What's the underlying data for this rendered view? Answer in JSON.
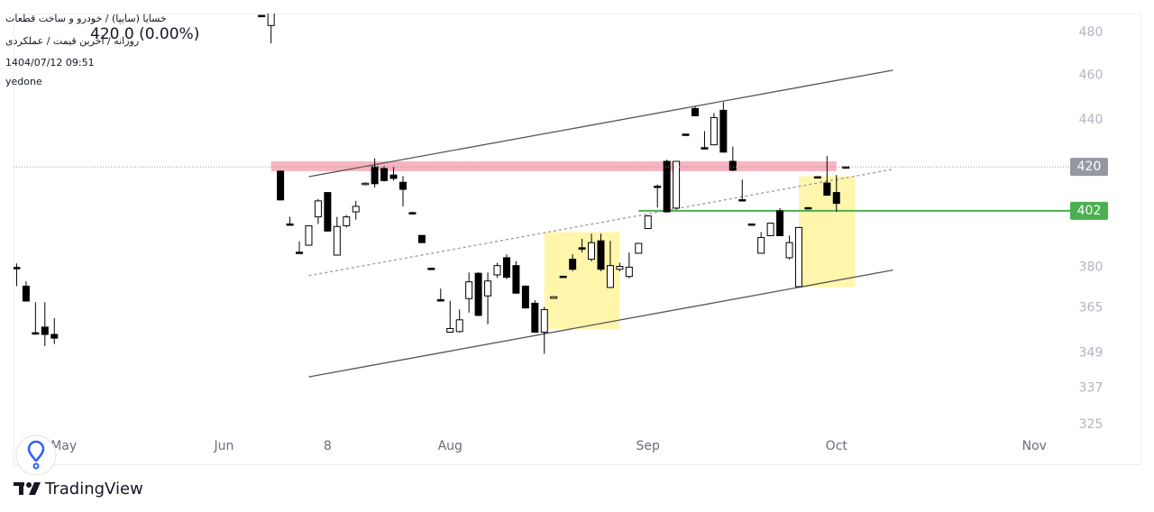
{
  "chart_data": {
    "type": "candlestick",
    "header": {
      "symbol": "خسایا (سایپا) / خودرو و ساخت قطعات",
      "quote": "420 0 (0.00%)",
      "interval": "روزانه / آخرین قیمت / عملکردی",
      "datetime": "1404/07/12 09:51",
      "author": "yedone"
    },
    "brand": "TradingView",
    "x": [
      0,
      1,
      2,
      3,
      4,
      26,
      27,
      28,
      29,
      30,
      31,
      32,
      33,
      34,
      35,
      36,
      37,
      38,
      39,
      40,
      41,
      42,
      43,
      44,
      45,
      46,
      47,
      48,
      49,
      50,
      51,
      52,
      53,
      54,
      55,
      56,
      57,
      58,
      59,
      60,
      61,
      62,
      63,
      64,
      65,
      66,
      67,
      68,
      69,
      70,
      71,
      72,
      73,
      74,
      75,
      76,
      77,
      78,
      79,
      80,
      81,
      82,
      83,
      84,
      85,
      86,
      87,
      88
    ],
    "open": [
      380,
      373.0,
      356.1,
      358.1,
      355.5,
      488.3,
      483.4,
      418.2,
      396.8,
      385.8,
      388.5,
      399.6,
      409.4,
      384.7,
      396.1,
      401.6,
      413.0,
      420.0,
      419.3,
      416.6,
      413.6,
      401.3,
      392.3,
      379.7,
      368.0,
      356.3,
      356.5,
      368.4,
      377.8,
      369.4,
      377.2,
      383.7,
      380.7,
      373.0,
      366.7,
      356.3,
      368.5,
      376.7,
      383.1,
      387.5,
      383.1,
      390.2,
      372.5,
      379.3,
      376.6,
      385.4,
      395.0,
      412.0,
      422.3,
      403.1,
      433.9,
      445.1,
      428.1,
      429.3,
      444.3,
      422.3,
      406.5,
      396.8,
      385.4,
      392.2,
      402.0,
      383.7,
      372.8,
      403.3,
      415.9,
      413.3,
      409.4,
      420.0
    ],
    "high": [
      381.5,
      374.8,
      367.1,
      367.1,
      361.3,
      488.5,
      490,
      418.4,
      399.6,
      390.0,
      396.2,
      406.8,
      409.5,
      399.6,
      400.3,
      406.0,
      413.6,
      423.6,
      420.4,
      419.9,
      416.2,
      401.6,
      392.3,
      379.8,
      372.1,
      367.6,
      364.4,
      378.1,
      378.2,
      378.1,
      381.8,
      385.0,
      382.4,
      373.3,
      367.8,
      365.4,
      369.2,
      376.8,
      385.0,
      391.0,
      393.0,
      393.0,
      390.2,
      381.8,
      385.7,
      389.4,
      400.3,
      412.7,
      423.0,
      422.5,
      434.0,
      445.9,
      435.2,
      443.1,
      447.9,
      428.5,
      414.7,
      397.0,
      393.6,
      397.3,
      403.1,
      392.2,
      395.6,
      403.5,
      416.1,
      424.5,
      416.6,
      420.1
    ],
    "low": [
      373,
      367.3,
      355.4,
      351.4,
      352.1,
      487.8,
      474.9,
      406.2,
      396.5,
      385.4,
      388.3,
      396.8,
      393.8,
      384.5,
      395.4,
      398.5,
      412.3,
      411.5,
      413.9,
      414.3,
      403.8,
      400.8,
      389.3,
      379.4,
      367.6,
      356.1,
      356.2,
      363.3,
      362.0,
      359.1,
      376.1,
      375.6,
      370.2,
      364.8,
      356.1,
      348.7,
      368.3,
      376.4,
      378.6,
      385.7,
      382.3,
      378.6,
      372.3,
      378.6,
      375.9,
      385.2,
      394.8,
      403.3,
      401.3,
      402.4,
      433.6,
      441.7,
      427.4,
      429.1,
      426.0,
      418.2,
      406.1,
      396.5,
      385.2,
      392.0,
      392.0,
      383.0,
      372.6,
      403.0,
      415.6,
      408.1,
      401.6,
      419.7
    ],
    "close": [
      379.8,
      367.5,
      355.8,
      355.5,
      354.2,
      488.0,
      490,
      406.4,
      396.6,
      385.6,
      396.1,
      406.0,
      394.0,
      395.8,
      399.6,
      403.8,
      413.2,
      413.0,
      414.3,
      415.2,
      410.7,
      401.1,
      389.5,
      379.5,
      367.8,
      357.6,
      360.7,
      374.6,
      362.3,
      374.9,
      380.7,
      376.3,
      370.4,
      365.0,
      356.3,
      364.4,
      369.1,
      376.5,
      379.3,
      387.3,
      389.5,
      379.3,
      380.7,
      380.4,
      380.1,
      389.2,
      400.0,
      411.8,
      401.6,
      422.3,
      433.7,
      441.9,
      427.9,
      441.1,
      426.2,
      418.6,
      406.3,
      396.6,
      391.5,
      397.1,
      392.2,
      389.5,
      395.4,
      403.1,
      415.7,
      408.3,
      405.0,
      419.8
    ],
    "up_color": "#ffffff",
    "down_color": "#000000",
    "wick_color": "#000000",
    "xlim": [
      -0.33,
      111.8
    ],
    "xticks": [
      {
        "value": 5,
        "label": "May"
      },
      {
        "value": 22,
        "label": "Jun"
      },
      {
        "value": 33,
        "label": "8"
      },
      {
        "value": 46,
        "label": "Aug"
      },
      {
        "value": 67,
        "label": "Sep"
      },
      {
        "value": 87,
        "label": "Oct"
      },
      {
        "value": 108,
        "label": "Nov"
      }
    ],
    "ylim": [
      322.4,
      489.2
    ],
    "yticks": [
      480,
      460,
      440,
      380,
      365,
      349,
      337,
      325
    ],
    "log_scale": true,
    "grid": false,
    "last_price": 420,
    "last_price_color": "#9598a1",
    "drawings": [
      {
        "kind": "rectangle",
        "x": [
          27,
          87
        ],
        "y": [
          422.3,
          418.2
        ],
        "color": "#f7a8b4"
      },
      {
        "kind": "rectangle",
        "x": [
          56,
          64
        ],
        "y": [
          393.6,
          357.4
        ],
        "color": "#fff59d"
      },
      {
        "kind": "rectangle",
        "x": [
          83,
          89
        ],
        "y": [
          416.1,
          372.6
        ],
        "color": "#fff59d"
      },
      {
        "kind": "trend_line",
        "x": [
          31,
          93
        ],
        "y": [
          415.9,
          462.4
        ],
        "color": "#555555"
      },
      {
        "kind": "trend_line",
        "x": [
          31,
          93
        ],
        "y": [
          340.8,
          379.0
        ],
        "color": "#555555"
      },
      {
        "kind": "dashed_line",
        "x": [
          31,
          93
        ],
        "y": [
          376.9,
          419.0
        ],
        "color": "#999999"
      },
      {
        "kind": "horizontal_ray",
        "x": [
          66
        ],
        "y": [
          402
        ],
        "color": "#4caf50"
      }
    ]
  }
}
